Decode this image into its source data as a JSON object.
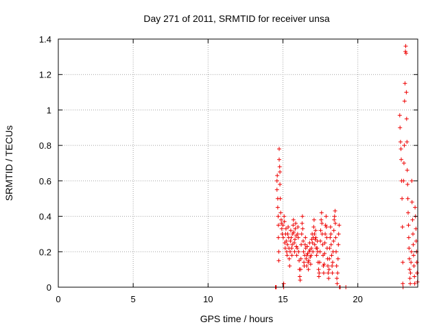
{
  "chart_data": {
    "type": "scatter",
    "title": "Day 271 of 2011, SRMTID for receiver unsa",
    "xlabel": "GPS time / hours",
    "ylabel": "SRMTID / TECUs",
    "xlim": [
      0,
      24
    ],
    "ylim": [
      0,
      1.4
    ],
    "xticks": [
      0,
      5,
      10,
      15,
      20
    ],
    "xtick_labels": [
      "0",
      "5",
      "10",
      "15",
      "20"
    ],
    "yticks": [
      0,
      0.2,
      0.4,
      0.6,
      0.8,
      1,
      1.2,
      1.4
    ],
    "ytick_labels": [
      "0",
      "0.2",
      "0.4",
      "0.6",
      "0.8",
      "1",
      "1.2",
      "1.4"
    ],
    "grid": true,
    "marker": "plus",
    "colors": {
      "points": "#ee0000",
      "grid": "#a0a0a0",
      "axes": "#000000"
    },
    "series": [
      {
        "points": [
          [
            14.5,
            0.0
          ],
          [
            14.52,
            0.0
          ],
          [
            14.55,
            0.0
          ],
          [
            14.6,
            0.55
          ],
          [
            14.6,
            0.6
          ],
          [
            14.62,
            0.63
          ],
          [
            14.65,
            0.5
          ],
          [
            14.65,
            0.45
          ],
          [
            14.68,
            0.4
          ],
          [
            14.7,
            0.35
          ],
          [
            14.7,
            0.28
          ],
          [
            14.72,
            0.2
          ],
          [
            14.72,
            0.15
          ],
          [
            14.75,
            0.78
          ],
          [
            14.75,
            0.72
          ],
          [
            14.78,
            0.68
          ],
          [
            14.8,
            0.65
          ],
          [
            14.8,
            0.58
          ],
          [
            14.82,
            0.5
          ],
          [
            14.85,
            0.42
          ],
          [
            14.88,
            0.38
          ],
          [
            14.9,
            0.36
          ],
          [
            14.92,
            0.33
          ],
          [
            14.95,
            0.3
          ],
          [
            15.0,
            0.35
          ],
          [
            15.02,
            0.28
          ],
          [
            15.05,
            0.0
          ],
          [
            15.05,
            0.02
          ],
          [
            15.08,
            0.4
          ],
          [
            15.1,
            0.37
          ],
          [
            15.12,
            0.25
          ],
          [
            15.15,
            0.22
          ],
          [
            15.18,
            0.3
          ],
          [
            15.2,
            0.33
          ],
          [
            15.22,
            0.26
          ],
          [
            15.25,
            0.2
          ],
          [
            15.28,
            0.18
          ],
          [
            15.3,
            0.24
          ],
          [
            15.32,
            0.3
          ],
          [
            15.35,
            0.34
          ],
          [
            15.38,
            0.28
          ],
          [
            15.4,
            0.22
          ],
          [
            15.42,
            0.16
          ],
          [
            15.45,
            0.12
          ],
          [
            15.48,
            0.2
          ],
          [
            15.5,
            0.26
          ],
          [
            15.52,
            0.32
          ],
          [
            15.55,
            0.28
          ],
          [
            15.58,
            0.22
          ],
          [
            15.6,
            0.18
          ],
          [
            15.62,
            0.24
          ],
          [
            15.65,
            0.3
          ],
          [
            15.68,
            0.35
          ],
          [
            15.7,
            0.38
          ],
          [
            15.72,
            0.31
          ],
          [
            15.75,
            0.25
          ],
          [
            15.78,
            0.2
          ],
          [
            15.8,
            0.27
          ],
          [
            15.82,
            0.33
          ],
          [
            15.85,
            0.36
          ],
          [
            15.88,
            0.29
          ],
          [
            15.9,
            0.23
          ],
          [
            15.92,
            0.18
          ],
          [
            15.95,
            0.22
          ],
          [
            15.98,
            0.3
          ],
          [
            16.0,
            0.34
          ],
          [
            16.02,
            0.28
          ],
          [
            16.05,
            0.2
          ],
          [
            16.08,
            0.15
          ],
          [
            16.1,
            0.1
          ],
          [
            16.12,
            0.06
          ],
          [
            16.15,
            0.04
          ],
          [
            16.18,
            0.1
          ],
          [
            16.2,
            0.16
          ],
          [
            16.22,
            0.24
          ],
          [
            16.25,
            0.3
          ],
          [
            16.28,
            0.36
          ],
          [
            16.3,
            0.4
          ],
          [
            16.32,
            0.33
          ],
          [
            16.35,
            0.26
          ],
          [
            16.38,
            0.2
          ],
          [
            16.4,
            0.14
          ],
          [
            16.42,
            0.12
          ],
          [
            16.45,
            0.18
          ],
          [
            16.48,
            0.24
          ],
          [
            16.5,
            0.28
          ],
          [
            16.52,
            0.22
          ],
          [
            16.55,
            0.16
          ],
          [
            16.58,
            0.12
          ],
          [
            16.6,
            0.18
          ],
          [
            16.62,
            0.23
          ],
          [
            16.65,
            0.19
          ],
          [
            16.68,
            0.14
          ],
          [
            16.7,
            0.1
          ],
          [
            16.72,
            0.15
          ],
          [
            16.75,
            0.2
          ],
          [
            16.78,
            0.25
          ],
          [
            16.8,
            0.21
          ],
          [
            16.82,
            0.17
          ],
          [
            16.85,
            0.13
          ],
          [
            16.88,
            0.18
          ],
          [
            16.9,
            0.22
          ],
          [
            16.92,
            0.27
          ],
          [
            16.95,
            0.3
          ],
          [
            16.98,
            0.25
          ],
          [
            17.0,
            0.2
          ],
          [
            17.02,
            0.28
          ],
          [
            17.05,
            0.34
          ],
          [
            17.08,
            0.38
          ],
          [
            17.1,
            0.3
          ],
          [
            17.12,
            0.24
          ],
          [
            17.15,
            0.27
          ],
          [
            17.18,
            0.32
          ],
          [
            17.2,
            0.28
          ],
          [
            17.22,
            0.22
          ],
          [
            17.25,
            0.18
          ],
          [
            17.28,
            0.22
          ],
          [
            17.3,
            0.26
          ],
          [
            17.32,
            0.2
          ],
          [
            17.35,
            0.14
          ],
          [
            17.38,
            0.1
          ],
          [
            17.4,
            0.06
          ],
          [
            17.42,
            0.08
          ],
          [
            17.45,
            0.14
          ],
          [
            17.48,
            0.2
          ],
          [
            17.5,
            0.26
          ],
          [
            17.52,
            0.32
          ],
          [
            17.55,
            0.38
          ],
          [
            17.58,
            0.42
          ],
          [
            17.6,
            0.36
          ],
          [
            17.62,
            0.3
          ],
          [
            17.65,
            0.24
          ],
          [
            17.68,
            0.18
          ],
          [
            17.7,
            0.12
          ],
          [
            17.72,
            0.08
          ],
          [
            17.75,
            0.13
          ],
          [
            17.78,
            0.19
          ],
          [
            17.8,
            0.25
          ],
          [
            17.82,
            0.3
          ],
          [
            17.85,
            0.35
          ],
          [
            17.88,
            0.4
          ],
          [
            17.9,
            0.34
          ],
          [
            17.92,
            0.28
          ],
          [
            17.95,
            0.22
          ],
          [
            17.98,
            0.16
          ],
          [
            18.0,
            0.12
          ],
          [
            18.02,
            0.08
          ],
          [
            18.05,
            0.05
          ],
          [
            18.08,
            0.1
          ],
          [
            18.1,
            0.16
          ],
          [
            18.12,
            0.22
          ],
          [
            18.15,
            0.28
          ],
          [
            18.18,
            0.34
          ],
          [
            18.2,
            0.3
          ],
          [
            18.22,
            0.24
          ],
          [
            18.25,
            0.18
          ],
          [
            18.28,
            0.12
          ],
          [
            18.3,
            0.08
          ],
          [
            18.32,
            0.14
          ],
          [
            18.35,
            0.2
          ],
          [
            18.38,
            0.26
          ],
          [
            18.4,
            0.32
          ],
          [
            18.42,
            0.38
          ],
          [
            18.45,
            0.4
          ],
          [
            18.48,
            0.43
          ],
          [
            18.5,
            0.36
          ],
          [
            18.52,
            0.28
          ],
          [
            18.55,
            0.2
          ],
          [
            18.58,
            0.12
          ],
          [
            18.6,
            0.05
          ],
          [
            18.62,
            0.02
          ],
          [
            18.65,
            0.08
          ],
          [
            18.68,
            0.16
          ],
          [
            18.7,
            0.24
          ],
          [
            18.72,
            0.3
          ],
          [
            18.75,
            0.35
          ],
          [
            18.78,
            0.0
          ],
          [
            18.8,
            0.0
          ],
          [
            18.82,
            0.0
          ],
          [
            19.2,
            0.0
          ],
          [
            22.8,
            0.97
          ],
          [
            22.82,
            0.9
          ],
          [
            22.85,
            0.82
          ],
          [
            22.88,
            0.78
          ],
          [
            22.9,
            0.72
          ],
          [
            22.92,
            0.6
          ],
          [
            22.95,
            0.5
          ],
          [
            22.98,
            0.34
          ],
          [
            23.0,
            0.14
          ],
          [
            23.0,
            0.02
          ],
          [
            23.02,
            0.0
          ],
          [
            23.05,
            0.6
          ],
          [
            23.08,
            0.7
          ],
          [
            23.1,
            0.8
          ],
          [
            23.12,
            1.05
          ],
          [
            23.15,
            1.15
          ],
          [
            23.18,
            1.33
          ],
          [
            23.2,
            1.36
          ],
          [
            23.22,
            1.32
          ],
          [
            23.24,
            1.1
          ],
          [
            23.26,
            0.95
          ],
          [
            23.28,
            0.82
          ],
          [
            23.3,
            0.66
          ],
          [
            23.32,
            0.58
          ],
          [
            23.34,
            0.5
          ],
          [
            23.36,
            0.42
          ],
          [
            23.38,
            0.35
          ],
          [
            23.4,
            0.28
          ],
          [
            23.42,
            0.22
          ],
          [
            23.44,
            0.16
          ],
          [
            23.46,
            0.1
          ],
          [
            23.48,
            0.05
          ],
          [
            23.5,
            0.02
          ],
          [
            23.52,
            0.08
          ],
          [
            23.55,
            0.14
          ],
          [
            23.58,
            0.2
          ],
          [
            23.6,
            0.6
          ],
          [
            23.62,
            0.48
          ],
          [
            23.65,
            0.38
          ],
          [
            23.68,
            0.3
          ],
          [
            23.7,
            0.24
          ],
          [
            23.72,
            0.18
          ],
          [
            23.75,
            0.12
          ],
          [
            23.78,
            0.06
          ],
          [
            23.8,
            0.02
          ],
          [
            23.82,
            0.45
          ],
          [
            23.85,
            0.4
          ],
          [
            23.88,
            0.33
          ],
          [
            23.9,
            0.26
          ],
          [
            23.92,
            0.2
          ],
          [
            23.94,
            0.14
          ],
          [
            23.96,
            0.08
          ],
          [
            23.98,
            0.03
          ]
        ]
      }
    ]
  }
}
